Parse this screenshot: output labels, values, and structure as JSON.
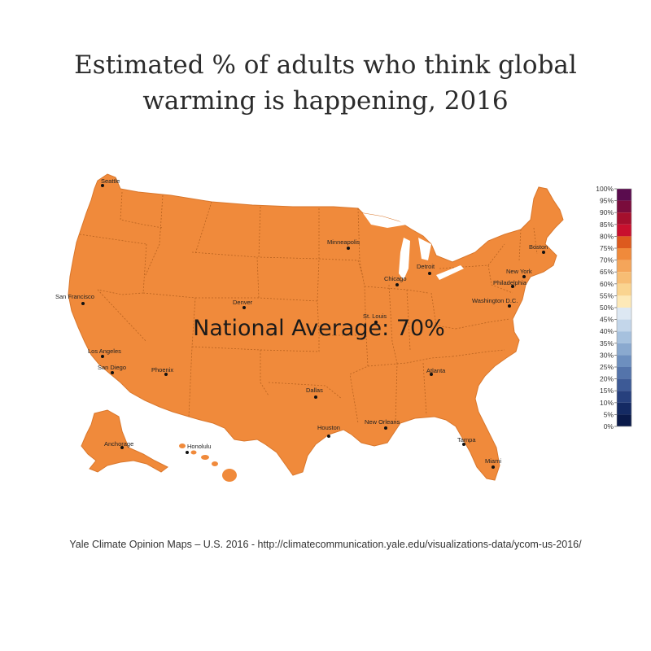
{
  "title": {
    "line1": "Estimated % of adults who think global",
    "line2": "warming is happening, 2016"
  },
  "map": {
    "region": "United States",
    "fill_color": "#f08a3b",
    "national_average_label": "National Average: 70%",
    "national_average_value": 70,
    "cities": [
      {
        "name": "Seattle"
      },
      {
        "name": "San Francisco"
      },
      {
        "name": "Los Angeles"
      },
      {
        "name": "San Diego"
      },
      {
        "name": "Phoenix"
      },
      {
        "name": "Denver"
      },
      {
        "name": "Dallas"
      },
      {
        "name": "Houston"
      },
      {
        "name": "Minneapolis"
      },
      {
        "name": "Chicago"
      },
      {
        "name": "Detroit"
      },
      {
        "name": "St. Louis"
      },
      {
        "name": "Atlanta"
      },
      {
        "name": "New Orleans"
      },
      {
        "name": "Tampa"
      },
      {
        "name": "Miami"
      },
      {
        "name": "Washington D.C."
      },
      {
        "name": "Philadelphia"
      },
      {
        "name": "New York"
      },
      {
        "name": "Boston"
      },
      {
        "name": "Anchorage"
      },
      {
        "name": "Honolulu"
      }
    ]
  },
  "legend": {
    "bins": [
      {
        "label": "100%",
        "color": "#3b0a45"
      },
      {
        "label": "95%",
        "color": "#5a0c4e"
      },
      {
        "label": "90%",
        "color": "#7a0c3c"
      },
      {
        "label": "85%",
        "color": "#a50f2d"
      },
      {
        "label": "80%",
        "color": "#c8102e"
      },
      {
        "label": "75%",
        "color": "#dd5a1e"
      },
      {
        "label": "70%",
        "color": "#f08a3b"
      },
      {
        "label": "65%",
        "color": "#f4a55a"
      },
      {
        "label": "60%",
        "color": "#f7bd74"
      },
      {
        "label": "55%",
        "color": "#fad490"
      },
      {
        "label": "50%",
        "color": "#fde9b8"
      },
      {
        "label": "45%",
        "color": "#dde8f3"
      },
      {
        "label": "40%",
        "color": "#c3d6ea"
      },
      {
        "label": "35%",
        "color": "#a6c1de"
      },
      {
        "label": "30%",
        "color": "#8aa9cf"
      },
      {
        "label": "25%",
        "color": "#6d8fbf"
      },
      {
        "label": "20%",
        "color": "#5474ab"
      },
      {
        "label": "15%",
        "color": "#3d5a96"
      },
      {
        "label": "10%",
        "color": "#27407d"
      },
      {
        "label": "5%",
        "color": "#142a63"
      },
      {
        "label": "0%",
        "color": "#0a1a4a"
      }
    ]
  },
  "source": "Yale Climate Opinion Maps – U.S. 2016 - http://climatecommunication.yale.edu/visualizations-data/ycom-us-2016/"
}
